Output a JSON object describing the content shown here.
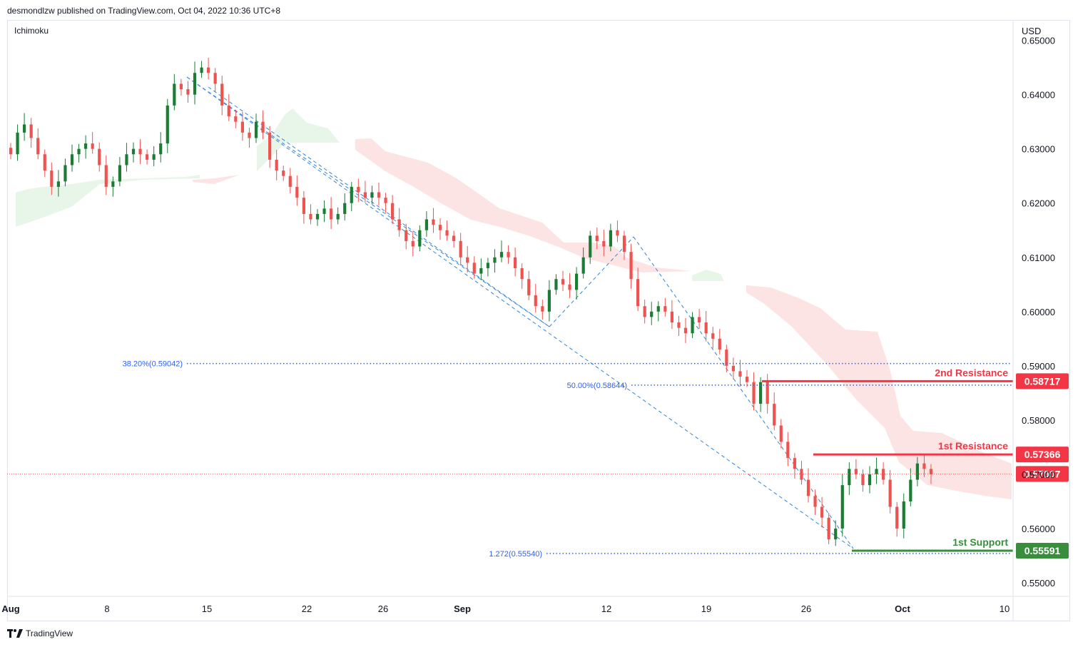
{
  "header": {
    "publisher": "desmondlzw published on TradingView.com, Oct 04, 2022 10:36 UTC+8"
  },
  "indicator_label": "Ichimoku",
  "footer": {
    "brand": "TradingView"
  },
  "colors": {
    "bull": "#26a69a",
    "bull_dark": "#1b7d34",
    "bear": "#ef5350",
    "resistance": "#f23645",
    "support": "#388e3c",
    "fib": "#2962ff",
    "cloud_bull": "#e8f5e9",
    "cloud_bear": "#fde4e4"
  },
  "chart_data": {
    "type": "candlestick",
    "currency": "USD",
    "y_axis_ticks": [
      "0.65000",
      "0.64000",
      "0.63000",
      "0.62000",
      "0.61000",
      "0.60000",
      "0.59000",
      "0.58000",
      "0.57000",
      "0.56000",
      "0.55000"
    ],
    "ylim": [
      0.5475,
      0.6535
    ],
    "x_axis_ticks": [
      "Aug",
      "8",
      "15",
      "22",
      "26",
      "Sep",
      "12",
      "19",
      "26",
      "Oct",
      "10"
    ],
    "price_levels": [
      {
        "name": "2nd Resistance",
        "value": 0.58717,
        "label": "0.58717",
        "kind": "resistance"
      },
      {
        "name": "1st Resistance",
        "value": 0.57366,
        "label": "0.57366",
        "kind": "resistance"
      },
      {
        "name": "current",
        "value": 0.57007,
        "label": "0.57007",
        "kind": "last"
      },
      {
        "name": "1st Support",
        "value": 0.55591,
        "label": "0.55591",
        "kind": "support"
      }
    ],
    "fib_levels": [
      {
        "label": "38.20%(0.59042)",
        "value": 0.59042
      },
      {
        "label": "50.00%(0.58644)",
        "value": 0.58644
      },
      {
        "label": "1.272(0.55540)",
        "value": 0.5554
      }
    ],
    "close_series": [
      0.629,
      0.633,
      0.6345,
      0.632,
      0.629,
      0.626,
      0.623,
      0.624,
      0.627,
      0.629,
      0.63,
      0.631,
      0.63,
      0.627,
      0.623,
      0.624,
      0.627,
      0.629,
      0.63,
      0.629,
      0.628,
      0.629,
      0.631,
      0.638,
      0.642,
      0.641,
      0.64,
      0.644,
      0.645,
      0.644,
      0.642,
      0.638,
      0.636,
      0.635,
      0.633,
      0.632,
      0.635,
      0.633,
      0.628,
      0.626,
      0.625,
      0.623,
      0.621,
      0.618,
      0.617,
      0.618,
      0.619,
      0.617,
      0.618,
      0.62,
      0.623,
      0.622,
      0.621,
      0.622,
      0.621,
      0.62,
      0.617,
      0.615,
      0.613,
      0.612,
      0.615,
      0.617,
      0.616,
      0.615,
      0.614,
      0.613,
      0.61,
      0.609,
      0.607,
      0.608,
      0.609,
      0.61,
      0.611,
      0.61,
      0.608,
      0.606,
      0.603,
      0.601,
      0.6,
      0.604,
      0.606,
      0.605,
      0.604,
      0.607,
      0.61,
      0.614,
      0.613,
      0.612,
      0.615,
      0.614,
      0.611,
      0.606,
      0.601,
      0.599,
      0.6,
      0.601,
      0.6,
      0.598,
      0.597,
      0.596,
      0.599,
      0.598,
      0.596,
      0.595,
      0.593,
      0.59,
      0.589,
      0.588,
      0.587,
      0.583,
      0.587,
      0.583,
      0.579,
      0.576,
      0.573,
      0.571,
      0.569,
      0.566,
      0.564,
      0.562,
      0.558,
      0.56,
      0.568,
      0.571,
      0.57,
      0.568,
      0.57,
      0.571,
      0.569,
      0.564,
      0.56,
      0.565,
      0.569,
      0.572,
      0.571,
      0.57
    ]
  }
}
